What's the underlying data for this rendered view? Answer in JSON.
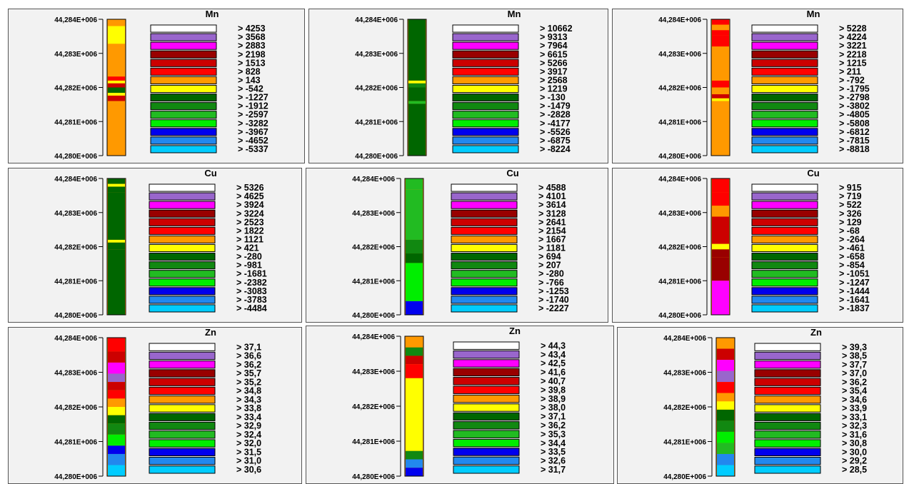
{
  "colors": [
    "#ffffff",
    "#9966cc",
    "#ff00ff",
    "#990000",
    "#cc0000",
    "#ff0000",
    "#ff9900",
    "#ffff00",
    "#006600",
    "#118811",
    "#22bb22",
    "#00ee00",
    "#0000ee",
    "#2288ee",
    "#00ccff"
  ],
  "chart_data": [
    {
      "type": "heatmap",
      "title": "Mn",
      "y_ticks": [
        "44,284E+006",
        "44,283E+006",
        "44,282E+006",
        "44,281E+006",
        "44,280E+006"
      ],
      "legend_values": [
        "> 4253",
        "> 3568",
        "> 2883",
        "> 2198",
        "> 1513",
        "> 828",
        "> 143",
        "> -542",
        "> -1227",
        "> -1912",
        "> -2597",
        "> -3282",
        "> -3967",
        "> -4652",
        "> -5337"
      ],
      "strip_bands": [
        [
          0.0,
          0.05,
          6
        ],
        [
          0.05,
          0.18,
          7
        ],
        [
          0.18,
          0.2,
          6
        ],
        [
          0.2,
          0.42,
          6
        ],
        [
          0.42,
          0.45,
          5
        ],
        [
          0.45,
          0.47,
          7
        ],
        [
          0.47,
          0.5,
          4
        ],
        [
          0.5,
          0.54,
          8
        ],
        [
          0.54,
          0.56,
          7
        ],
        [
          0.56,
          0.6,
          4
        ],
        [
          0.6,
          0.63,
          6
        ],
        [
          0.63,
          1.0,
          6
        ]
      ]
    },
    {
      "type": "heatmap",
      "title": "Mn",
      "y_ticks": [
        "44,284E+006",
        "44,283E+006",
        "44,282E+006",
        "44,281E+006",
        "44,280E+006"
      ],
      "legend_values": [
        "> 10662",
        "> 9313",
        "> 7964",
        "> 6615",
        "> 5266",
        "> 3917",
        "> 2568",
        "> 1219",
        "> -130",
        "> -1479",
        "> -2828",
        "> -4177",
        "> -5526",
        "> -6875",
        "> -8224"
      ],
      "strip_bands": [
        [
          0.0,
          0.45,
          8
        ],
        [
          0.45,
          0.47,
          7
        ],
        [
          0.47,
          0.5,
          9
        ],
        [
          0.5,
          0.6,
          8
        ],
        [
          0.6,
          0.62,
          10
        ],
        [
          0.62,
          1.0,
          8
        ]
      ]
    },
    {
      "type": "heatmap",
      "title": "Mn",
      "y_ticks": [
        "44,284E+006",
        "44,283E+006",
        "44,282E+006",
        "44,281E+006",
        "44,280E+006"
      ],
      "legend_values": [
        "> 5228",
        "> 4224",
        "> 3221",
        "> 2218",
        "> 1215",
        "> 211",
        "> -792",
        "> -1795",
        "> -2798",
        "> -3802",
        "> -4805",
        "> -5808",
        "> -6812",
        "> -7815",
        "> -8818"
      ],
      "strip_bands": [
        [
          0.0,
          0.04,
          5
        ],
        [
          0.04,
          0.08,
          6
        ],
        [
          0.08,
          0.12,
          5
        ],
        [
          0.12,
          0.2,
          5
        ],
        [
          0.2,
          0.45,
          6
        ],
        [
          0.45,
          0.5,
          5
        ],
        [
          0.5,
          0.55,
          6
        ],
        [
          0.55,
          0.58,
          4
        ],
        [
          0.58,
          0.6,
          7
        ],
        [
          0.6,
          1.0,
          6
        ]
      ]
    },
    {
      "type": "heatmap",
      "title": "Cu",
      "y_ticks": [
        "44,284E+006",
        "44,283E+006",
        "44,282E+006",
        "44,281E+006",
        "44,280E+006"
      ],
      "legend_values": [
        "> 5326",
        "> 4625",
        "> 3924",
        "> 3224",
        "> 2523",
        "> 1822",
        "> 1121",
        "> 421",
        "> -280",
        "> -981",
        "> -1681",
        "> -2382",
        "> -3083",
        "> -3783",
        "> -4484"
      ],
      "strip_bands": [
        [
          0.0,
          0.04,
          8
        ],
        [
          0.04,
          0.06,
          7
        ],
        [
          0.06,
          0.1,
          8
        ],
        [
          0.1,
          0.45,
          8
        ],
        [
          0.45,
          0.47,
          7
        ],
        [
          0.47,
          0.52,
          8
        ],
        [
          0.52,
          1.0,
          8
        ]
      ]
    },
    {
      "type": "heatmap",
      "title": "Cu",
      "y_ticks": [
        "44,284E+006",
        "44,283E+006",
        "44,282E+006",
        "44,281E+006",
        "44,280E+006"
      ],
      "legend_values": [
        "> 4588",
        "> 4101",
        "> 3614",
        "> 3128",
        "> 2641",
        "> 2154",
        "> 1667",
        "> 1181",
        "> 694",
        "> 207",
        "> -280",
        "> -766",
        "> -1253",
        "> -1740",
        "> -2227"
      ],
      "strip_bands": [
        [
          0.0,
          0.08,
          10
        ],
        [
          0.08,
          0.45,
          10
        ],
        [
          0.45,
          0.55,
          9
        ],
        [
          0.55,
          0.62,
          8
        ],
        [
          0.62,
          0.9,
          11
        ],
        [
          0.9,
          1.0,
          12
        ]
      ]
    },
    {
      "type": "heatmap",
      "title": "Cu",
      "y_ticks": [
        "44,284E+006",
        "44,283E+006",
        "44,282E+006",
        "44,281E+006",
        "44,280E+006"
      ],
      "legend_values": [
        "> 915",
        "> 719",
        "> 522",
        "> 326",
        "> 129",
        "> -68",
        "> -264",
        "> -461",
        "> -658",
        "> -854",
        "> -1051",
        "> -1247",
        "> -1444",
        "> -1641",
        "> -1837"
      ],
      "strip_bands": [
        [
          0.0,
          0.1,
          5
        ],
        [
          0.1,
          0.2,
          5
        ],
        [
          0.2,
          0.28,
          6
        ],
        [
          0.28,
          0.48,
          4
        ],
        [
          0.48,
          0.52,
          7
        ],
        [
          0.52,
          0.58,
          3
        ],
        [
          0.58,
          0.75,
          3
        ],
        [
          0.75,
          1.0,
          2
        ]
      ]
    },
    {
      "type": "heatmap",
      "title": "Zn",
      "y_ticks": [
        "44,284E+006",
        "44,283E+006",
        "44,282E+006",
        "44,281E+006",
        "44,280E+006"
      ],
      "legend_values": [
        "> 37,1",
        "> 36,6",
        "> 36,2",
        "> 35,7",
        "> 35,2",
        "> 34,8",
        "> 34,3",
        "> 33,8",
        "> 33,4",
        "> 32,9",
        "> 32,4",
        "> 32,0",
        "> 31,5",
        "> 31,0",
        "> 30,6"
      ],
      "strip_bands": [
        [
          0.0,
          0.1,
          5
        ],
        [
          0.1,
          0.18,
          4
        ],
        [
          0.18,
          0.26,
          2
        ],
        [
          0.26,
          0.32,
          1
        ],
        [
          0.32,
          0.38,
          4
        ],
        [
          0.38,
          0.44,
          5
        ],
        [
          0.44,
          0.5,
          6
        ],
        [
          0.5,
          0.56,
          7
        ],
        [
          0.56,
          0.62,
          8
        ],
        [
          0.62,
          0.7,
          9
        ],
        [
          0.7,
          0.78,
          11
        ],
        [
          0.78,
          0.84,
          12
        ],
        [
          0.84,
          0.92,
          13
        ],
        [
          0.92,
          1.0,
          14
        ]
      ]
    },
    {
      "type": "heatmap",
      "title": "Zn",
      "y_ticks": [
        "44,284E+006",
        "44,283E+006",
        "44,282E+006",
        "44,281E+006",
        "44,280E+006"
      ],
      "legend_values": [
        "> 44,3",
        "> 43,4",
        "> 42,5",
        "> 41,6",
        "> 40,7",
        "> 39,8",
        "> 38,9",
        "> 38,0",
        "> 37,1",
        "> 36,2",
        "> 35,3",
        "> 34,4",
        "> 33,5",
        "> 32,6",
        "> 31,7"
      ],
      "strip_bands": [
        [
          0.0,
          0.08,
          6
        ],
        [
          0.08,
          0.14,
          9
        ],
        [
          0.14,
          0.2,
          4
        ],
        [
          0.2,
          0.3,
          5
        ],
        [
          0.3,
          0.82,
          7
        ],
        [
          0.82,
          0.88,
          9
        ],
        [
          0.88,
          0.94,
          13
        ],
        [
          0.94,
          1.0,
          12
        ]
      ]
    },
    {
      "type": "heatmap",
      "title": "Zn",
      "y_ticks": [
        "44,284E+006",
        "44,283E+006",
        "44,282E+006",
        "44,281E+006",
        "44,280E+006"
      ],
      "legend_values": [
        "> 39,3",
        "> 38,5",
        "> 37,7",
        "> 37,0",
        "> 36,2",
        "> 35,4",
        "> 34,6",
        "> 33,9",
        "> 33,1",
        "> 32,3",
        "> 31,6",
        "> 30,8",
        "> 30,0",
        "> 29,2",
        "> 28,5"
      ],
      "strip_bands": [
        [
          0.0,
          0.08,
          6
        ],
        [
          0.08,
          0.16,
          4
        ],
        [
          0.16,
          0.24,
          2
        ],
        [
          0.24,
          0.32,
          1
        ],
        [
          0.32,
          0.4,
          5
        ],
        [
          0.4,
          0.46,
          6
        ],
        [
          0.46,
          0.52,
          7
        ],
        [
          0.52,
          0.6,
          8
        ],
        [
          0.6,
          0.68,
          9
        ],
        [
          0.68,
          0.76,
          11
        ],
        [
          0.76,
          0.84,
          10
        ],
        [
          0.84,
          0.92,
          13
        ],
        [
          0.92,
          1.0,
          14
        ]
      ]
    }
  ]
}
